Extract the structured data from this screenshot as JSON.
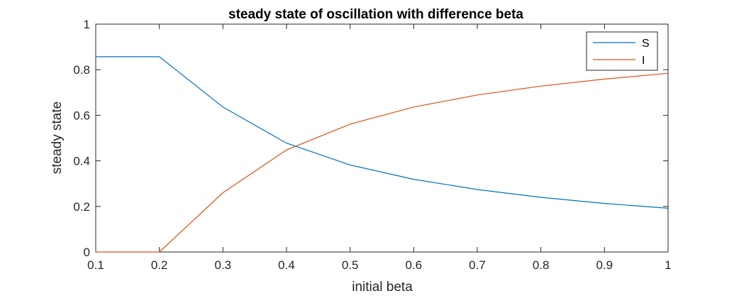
{
  "chart_data": {
    "type": "line",
    "title": "steady state of oscillation with difference beta",
    "xlabel": "initial beta",
    "ylabel": "steady state",
    "xlim": [
      0.1,
      1
    ],
    "ylim": [
      0,
      1
    ],
    "xticks": [
      "0.1",
      "0.2",
      "0.3",
      "0.4",
      "0.5",
      "0.6",
      "0.7",
      "0.8",
      "0.9",
      "1"
    ],
    "yticks": [
      "0",
      "0.2",
      "0.4",
      "0.6",
      "0.8",
      "1"
    ],
    "x": [
      0.1,
      0.2,
      0.3,
      0.4,
      0.5,
      0.6,
      0.7,
      0.8,
      0.9,
      1.0
    ],
    "series": [
      {
        "name": "S",
        "color": "#0072BD",
        "values": [
          0.857,
          0.857,
          0.636,
          0.478,
          0.382,
          0.319,
          0.274,
          0.24,
          0.213,
          0.192
        ]
      },
      {
        "name": "I",
        "color": "#D95319",
        "values": [
          0.0,
          0.0,
          0.26,
          0.448,
          0.561,
          0.636,
          0.689,
          0.728,
          0.759,
          0.784
        ]
      }
    ],
    "legend_position": "top-right",
    "grid": false
  }
}
